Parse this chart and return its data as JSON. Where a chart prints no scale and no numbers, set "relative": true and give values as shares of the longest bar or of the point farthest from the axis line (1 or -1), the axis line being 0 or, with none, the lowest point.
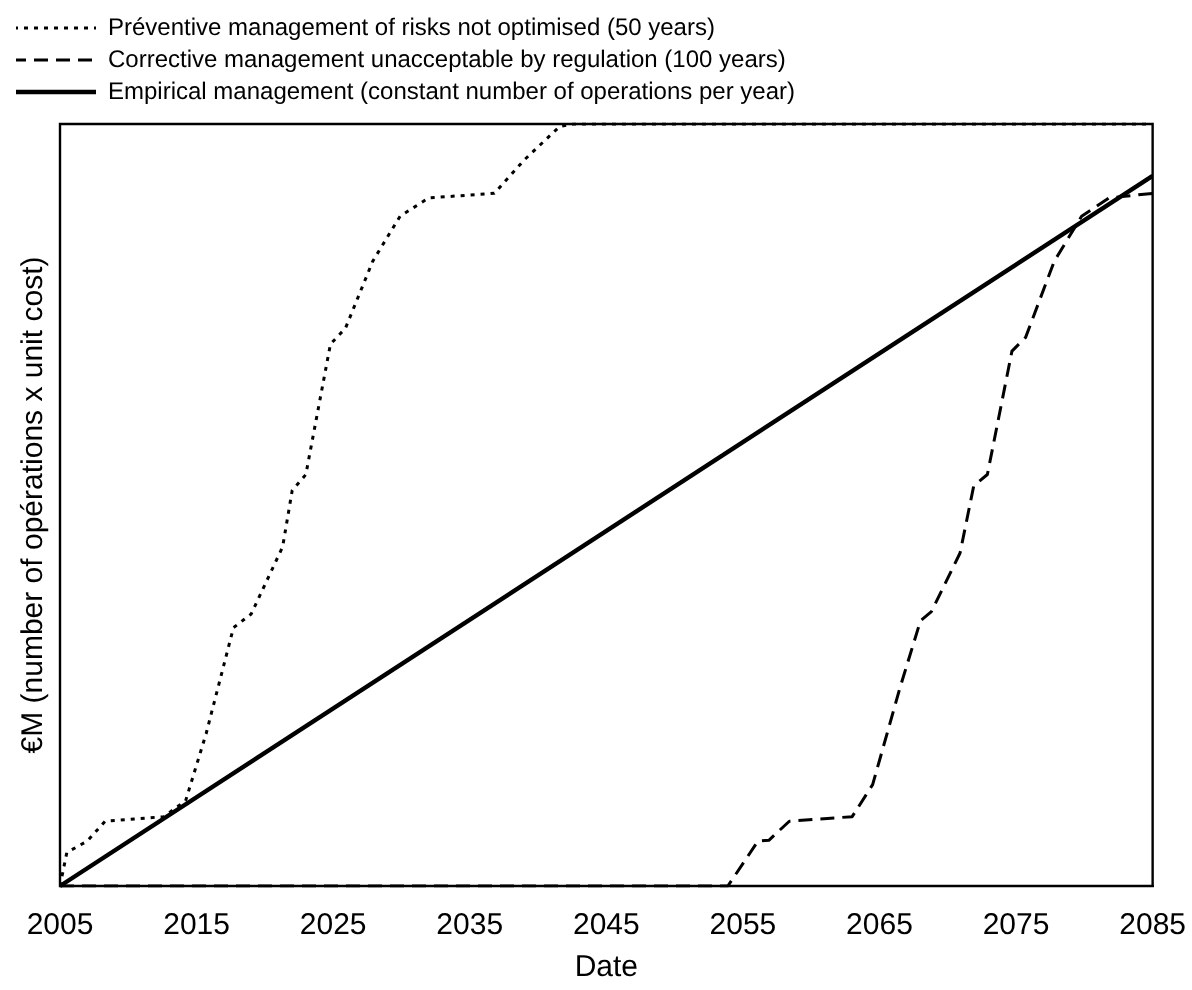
{
  "chart_data": {
    "type": "line",
    "xlabel": "Date",
    "ylabel": "€M (number of opérations x unit cost)",
    "relative": true,
    "xlim": [
      2005,
      2085
    ],
    "xticks": [
      2005,
      2015,
      2025,
      2035,
      2045,
      2055,
      2065,
      2075,
      2085
    ],
    "legend": "top",
    "grid": false,
    "marker": "none",
    "series": [
      {
        "name": "Préventive management of risks not optimised (50 years)",
        "color": "#000000",
        "line_style": "dotted",
        "x": [
          2005,
          2005.5,
          2007,
          2008.3,
          2012.6,
          2014.2,
          2015.7,
          2017.7,
          2019,
          2021.3,
          2022,
          2023,
          2024.8,
          2025.9,
          2027.9,
          2029.9,
          2032,
          2036.8,
          2039,
          2041.6,
          2042.6,
          2085
        ],
        "values": [
          0,
          0.044,
          0.059,
          0.085,
          0.091,
          0.112,
          0.2,
          0.339,
          0.357,
          0.445,
          0.519,
          0.54,
          0.711,
          0.732,
          0.82,
          0.879,
          0.903,
          0.909,
          0.953,
          0.997,
          1,
          1
        ]
      },
      {
        "name": "Corrective management unacceptable by regulation (100 years)",
        "color": "#000000",
        "line_style": "dashed",
        "x": [
          2005,
          2053.9,
          2055.1,
          2056.1,
          2056.9,
          2058.4,
          2063,
          2064.5,
          2066.5,
          2068,
          2068.8,
          2070.9,
          2071.9,
          2072.9,
          2074.7,
          2075.7,
          2077.8,
          2079.8,
          2081.8,
          2085
        ],
        "values": [
          0,
          0,
          0.032,
          0.059,
          0.06,
          0.085,
          0.091,
          0.133,
          0.26,
          0.348,
          0.36,
          0.437,
          0.525,
          0.54,
          0.702,
          0.72,
          0.82,
          0.879,
          0.903,
          0.909
        ]
      },
      {
        "name": "Empirical management (constant number of operations per year)",
        "color": "#000000",
        "line_style": "solid",
        "x": [
          2005,
          2085
        ],
        "values": [
          0,
          0.932
        ]
      }
    ]
  }
}
